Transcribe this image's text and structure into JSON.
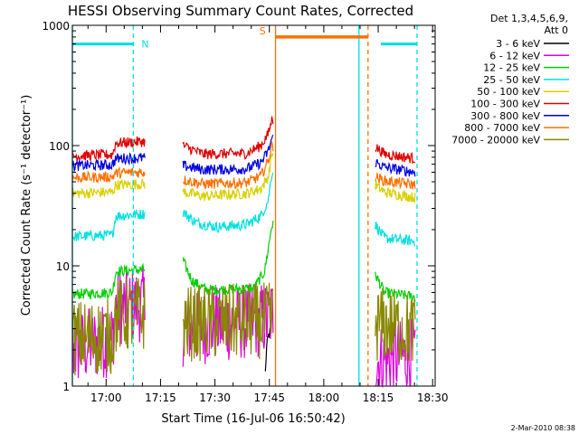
{
  "chart_data": {
    "type": "line",
    "title": "HESSI Observing Summary Count Rates, Corrected",
    "xlabel": "Start Time (16-Jul-06 16:50:42)",
    "ylabel": "Corrected Count Rate (s⁻¹ detector⁻¹)",
    "x_unit": "minutes after 16:50:42 on 16-Jul-06",
    "xlim": [
      0,
      100
    ],
    "ylim": [
      1,
      1000
    ],
    "y_scale": "log",
    "x_ticks": [
      "17:00",
      "17:15",
      "17:30",
      "17:45",
      "18:00",
      "18:15",
      "18:30"
    ],
    "x_tick_values": [
      9.3,
      24.3,
      39.3,
      54.3,
      69.3,
      84.3,
      99.3
    ],
    "y_ticks": [
      "1",
      "10",
      "100",
      "1000"
    ],
    "y_tick_values": [
      1,
      10,
      100,
      1000
    ],
    "legend": {
      "placement": "outside-right",
      "header": [
        "Det 1,3,4,5,6,9,",
        "Att 0"
      ]
    },
    "segments": [
      [
        0,
        20
      ],
      [
        30.5,
        55.5
      ],
      [
        83.5,
        95
      ]
    ],
    "series": [
      {
        "name": "3 - 6 keV",
        "color": "#000000",
        "points": [
          [
            30.5,
            null
          ],
          [
            53.0,
            1.0
          ],
          [
            53.5,
            2.0
          ],
          [
            54.0,
            2.6
          ],
          [
            55.0,
            3.0
          ]
        ]
      },
      {
        "name": "6 - 12 keV",
        "color": "#e000e0",
        "points": [
          [
            0,
            2.0
          ],
          [
            11,
            2.5
          ],
          [
            12,
            4.5
          ],
          [
            19.5,
            4.8
          ],
          [
            30.5,
            3.0
          ],
          [
            54,
            3.6
          ],
          [
            55.5,
            4.2
          ],
          [
            83.5,
            1.6
          ],
          [
            94.5,
            1.8
          ]
        ]
      },
      {
        "name": "12 - 25 keV",
        "color": "#00d000",
        "points": [
          [
            0,
            5.8
          ],
          [
            11,
            6.0
          ],
          [
            12,
            9.0
          ],
          [
            19.5,
            9.3
          ],
          [
            30.5,
            11.0
          ],
          [
            33,
            7.5
          ],
          [
            37,
            6.3
          ],
          [
            50,
            6.5
          ],
          [
            53,
            9.0
          ],
          [
            54,
            14.0
          ],
          [
            55,
            22.0
          ],
          [
            83.5,
            8.5
          ],
          [
            86,
            6.0
          ],
          [
            94.5,
            5.5
          ]
        ]
      },
      {
        "name": "25 - 50 keV",
        "color": "#00e0e0",
        "points": [
          [
            0,
            17.5
          ],
          [
            11,
            18.0
          ],
          [
            12,
            26.0
          ],
          [
            19.5,
            27.0
          ],
          [
            30.5,
            28.0
          ],
          [
            34,
            23.0
          ],
          [
            40,
            21.0
          ],
          [
            48,
            22.0
          ],
          [
            52,
            26.0
          ],
          [
            54,
            35.0
          ],
          [
            55,
            60.0
          ],
          [
            83.5,
            22.0
          ],
          [
            86,
            17.0
          ],
          [
            94.5,
            16.0
          ]
        ]
      },
      {
        "name": "50 - 100 keV",
        "color": "#d8d000",
        "points": [
          [
            0,
            40.0
          ],
          [
            11,
            41.0
          ],
          [
            12,
            47.0
          ],
          [
            19.5,
            48.0
          ],
          [
            30.5,
            41.0
          ],
          [
            36,
            38.0
          ],
          [
            48,
            40.0
          ],
          [
            52,
            44.0
          ],
          [
            54,
            55.0
          ],
          [
            55,
            85.0
          ],
          [
            83.5,
            47.0
          ],
          [
            86,
            41.0
          ],
          [
            94.5,
            37.0
          ]
        ]
      },
      {
        "name": "100 - 300 keV",
        "color": "#e00000",
        "points": [
          [
            0,
            82.0
          ],
          [
            11,
            84.0
          ],
          [
            12,
            105.0
          ],
          [
            19.5,
            108.0
          ],
          [
            30.5,
            100.0
          ],
          [
            36,
            85.0
          ],
          [
            48,
            86.0
          ],
          [
            52,
            100.0
          ],
          [
            54,
            125.0
          ],
          [
            55,
            165.0
          ],
          [
            83.5,
            98.0
          ],
          [
            86,
            85.0
          ],
          [
            94.5,
            78.0
          ]
        ]
      },
      {
        "name": "300 - 800 keV",
        "color": "#0000e0",
        "points": [
          [
            0,
            68.0
          ],
          [
            11,
            69.0
          ],
          [
            12,
            78.0
          ],
          [
            19.5,
            79.0
          ],
          [
            30.5,
            68.0
          ],
          [
            36,
            63.0
          ],
          [
            48,
            64.0
          ],
          [
            52,
            72.0
          ],
          [
            54,
            90.0
          ],
          [
            55,
            115.0
          ],
          [
            83.5,
            73.0
          ],
          [
            86,
            66.0
          ],
          [
            94.5,
            60.0
          ]
        ]
      },
      {
        "name": "800 - 7000 keV",
        "color": "#ff7000",
        "points": [
          [
            0,
            54.0
          ],
          [
            11,
            55.0
          ],
          [
            12,
            59.0
          ],
          [
            19.5,
            60.0
          ],
          [
            30.5,
            52.0
          ],
          [
            36,
            48.0
          ],
          [
            48,
            49.0
          ],
          [
            52,
            56.0
          ],
          [
            54,
            75.0
          ],
          [
            55,
            100.0
          ],
          [
            83.5,
            55.0
          ],
          [
            86,
            51.0
          ],
          [
            94.5,
            47.0
          ]
        ]
      },
      {
        "name": "7000 - 20000 keV",
        "color": "#888800",
        "points": [
          [
            0,
            2.5
          ],
          [
            11,
            2.6
          ],
          [
            12,
            3.8
          ],
          [
            19.5,
            4.0
          ],
          [
            30.5,
            3.3
          ],
          [
            54,
            3.5
          ],
          [
            55.5,
            3.7
          ],
          [
            83.5,
            3.3
          ],
          [
            94.5,
            2.9
          ]
        ]
      }
    ],
    "markers": {
      "night": {
        "color": "#00e0e0",
        "intervals": [
          [
            0,
            16.8
          ],
          [
            85.0,
            95.0
          ]
        ],
        "level": 700,
        "label": "N",
        "label_x": 17.8
      },
      "saa": {
        "color": "#ff7000",
        "intervals": [
          [
            56.0,
            81.5
          ]
        ],
        "level": 800,
        "label": "S",
        "label_x": 54.3
      },
      "solid_lines": [
        {
          "x": 0,
          "color": "#00e0e0"
        },
        {
          "x": 56.0,
          "color": "#ff7000"
        },
        {
          "x": 79.0,
          "color": "#00e0e0"
        }
      ],
      "dashed_lines": [
        {
          "x": 16.8,
          "color": "#00e0e0"
        },
        {
          "x": 81.5,
          "color": "#ff7000"
        },
        {
          "x": 95.0,
          "color": "#00e0e0"
        }
      ]
    }
  },
  "footer": {
    "date_stamp": "2-Mar-2010 08:38"
  }
}
